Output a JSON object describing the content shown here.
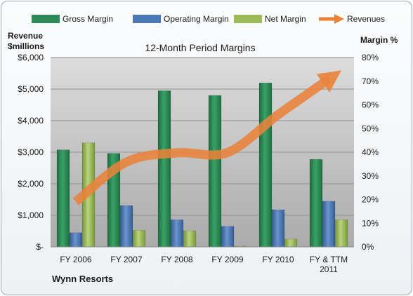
{
  "chart_data": {
    "type": "bar",
    "title": "12-Month Period Margins",
    "company_label": "Wynn Resorts",
    "y_left_label": [
      "Revenue",
      "$millions"
    ],
    "y_right_label": "Margin %",
    "categories": [
      [
        "FY 2006"
      ],
      [
        "FY 2007"
      ],
      [
        "FY 2008"
      ],
      [
        "FY 2009"
      ],
      [
        "FY 2010"
      ],
      [
        "FY & TTM",
        "2011"
      ]
    ],
    "y_left_ticks": [
      "$-",
      "$1,000",
      "$2,000",
      "$3,000",
      "$4,000",
      "$5,000",
      "$6,000"
    ],
    "y_right_ticks": [
      "0%",
      "10%",
      "20%",
      "30%",
      "40%",
      "50%",
      "60%",
      "70%",
      "80%"
    ],
    "ylim_left": [
      0,
      6000
    ],
    "ylim_right": [
      0,
      80
    ],
    "grid": true,
    "legend_position": "top",
    "series": [
      {
        "name": "Gross Margin",
        "axis": "right",
        "color": "#2e8b57",
        "values": [
          41,
          39.5,
          66,
          64,
          69.3,
          37
        ]
      },
      {
        "name": "Operating Margin",
        "axis": "right",
        "color": "#4a78b8",
        "values": [
          6,
          17.5,
          11.5,
          8.7,
          15.7,
          19.3
        ]
      },
      {
        "name": "Net Margin",
        "axis": "right",
        "color": "#9bbb59",
        "values": [
          44,
          7,
          6.8,
          0.3,
          3.3,
          11.5
        ]
      },
      {
        "name": "Revenues",
        "type": "line",
        "axis": "left",
        "color": "#e8833a",
        "values": [
          1430,
          2690,
          2980,
          2990,
          4190,
          5310
        ]
      }
    ]
  }
}
